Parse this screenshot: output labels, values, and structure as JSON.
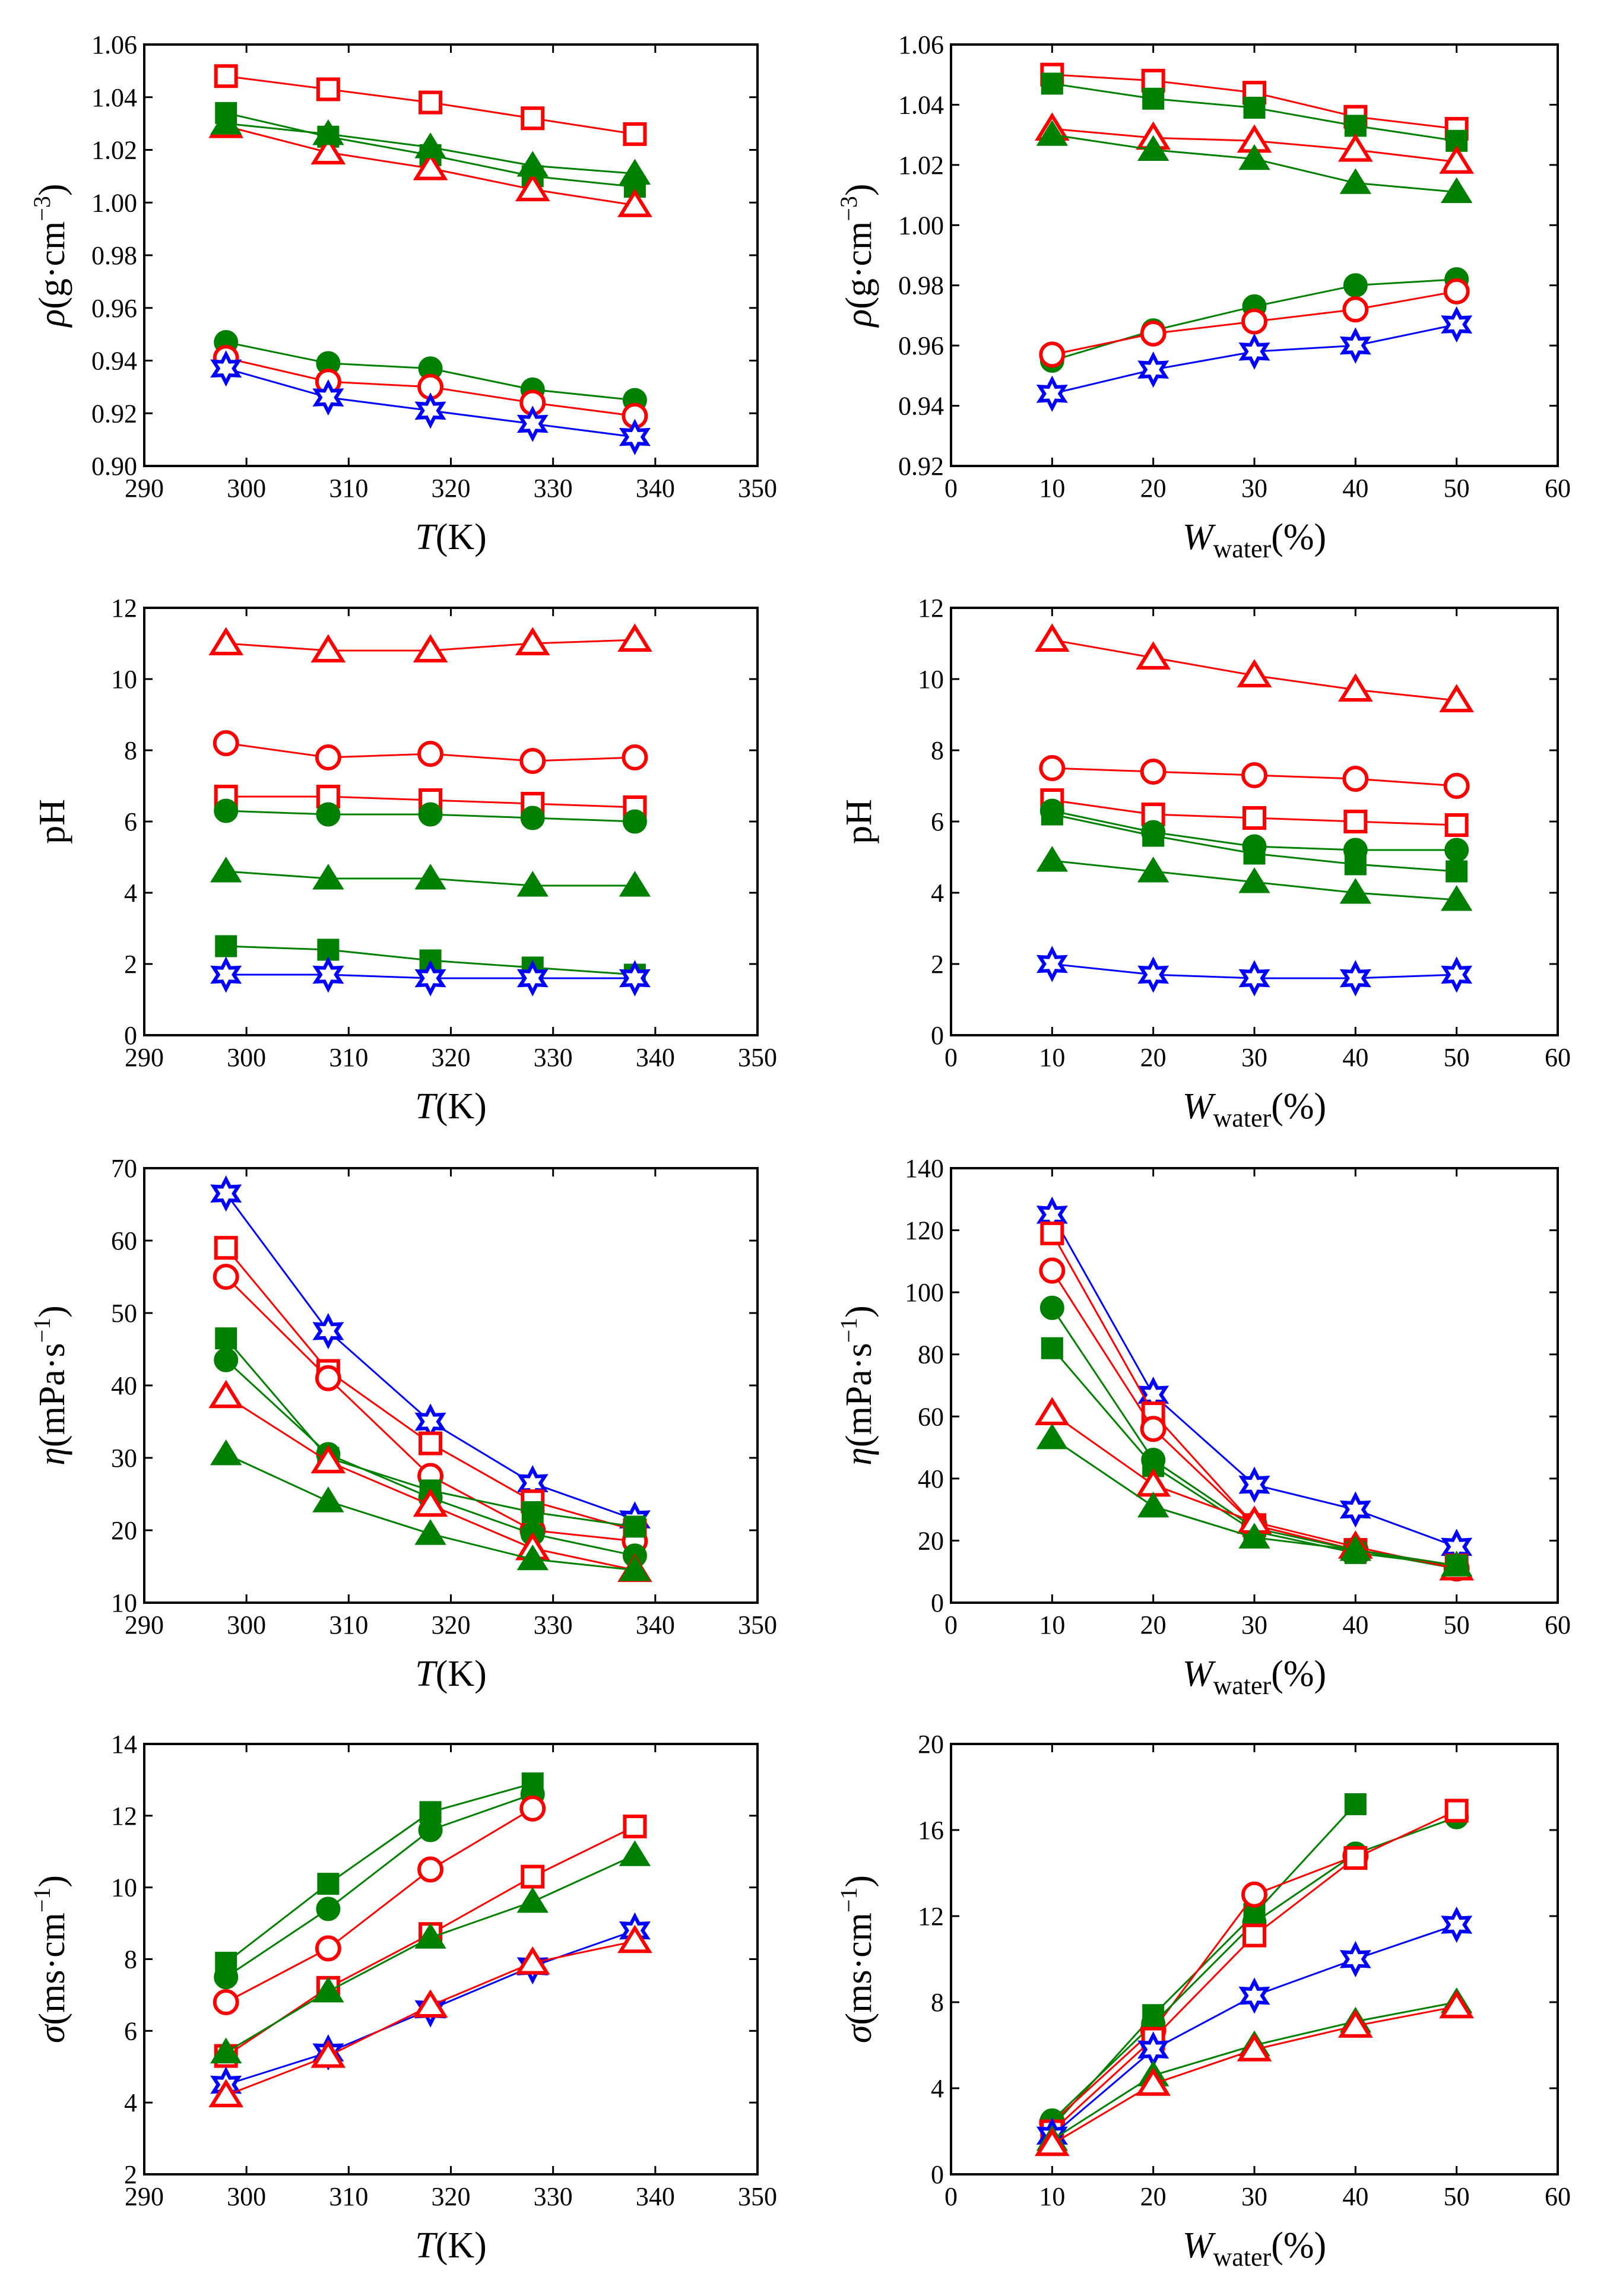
{
  "colors": {
    "red": "#ff0000",
    "green": "#008000",
    "blue": "#0000ff"
  },
  "chart_data": [
    {
      "type": "line",
      "panel": "density-vs-temperature",
      "x": [
        298,
        308,
        318,
        328,
        338
      ],
      "xlim": [
        290,
        350
      ],
      "xticks": [
        290,
        300,
        310,
        320,
        330,
        340,
        350
      ],
      "xtick_decimals": 0,
      "ylim": [
        0.9,
        1.06
      ],
      "yticks": [
        0.9,
        0.92,
        0.94,
        0.96,
        0.98,
        1.0,
        1.02,
        1.04,
        1.06
      ],
      "ytick_decimals": 2,
      "xlabel": {
        "main": "T",
        "italic": true,
        "tail": "(K)",
        "sub": ""
      },
      "ylabel": {
        "main": "ρ",
        "italic": true,
        "tail": "(g·cm",
        "sup": "−3",
        "close": ")"
      },
      "series": [
        {
          "marker": "open-square",
          "color": "red",
          "values": [
            1.048,
            1.043,
            1.038,
            1.032,
            1.026
          ]
        },
        {
          "marker": "filled-square",
          "color": "green",
          "values": [
            1.034,
            1.025,
            1.018,
            1.01,
            1.006
          ]
        },
        {
          "marker": "open-triangle",
          "color": "red",
          "values": [
            1.029,
            1.019,
            1.013,
            1.005,
            0.999
          ]
        },
        {
          "marker": "filled-triangle",
          "color": "green",
          "values": [
            1.03,
            1.026,
            1.021,
            1.014,
            1.011
          ]
        },
        {
          "marker": "filled-circle",
          "color": "green",
          "values": [
            0.947,
            0.939,
            0.937,
            0.929,
            0.925
          ]
        },
        {
          "marker": "open-circle",
          "color": "red",
          "values": [
            0.941,
            0.932,
            0.93,
            0.924,
            0.919
          ]
        },
        {
          "marker": "star",
          "color": "blue",
          "values": [
            0.937,
            0.926,
            0.921,
            0.916,
            0.911
          ]
        }
      ]
    },
    {
      "type": "line",
      "panel": "density-vs-water",
      "x": [
        10,
        20,
        30,
        40,
        50
      ],
      "xlim": [
        0,
        60
      ],
      "xticks": [
        0,
        10,
        20,
        30,
        40,
        50,
        60
      ],
      "xtick_decimals": 0,
      "ylim": [
        0.92,
        1.06
      ],
      "yticks": [
        0.92,
        0.94,
        0.96,
        0.98,
        1.0,
        1.02,
        1.04,
        1.06
      ],
      "ytick_decimals": 2,
      "xlabel": {
        "main": "W",
        "italic": true,
        "tail": "(%)",
        "sub": "water"
      },
      "ylabel": {
        "main": "ρ",
        "italic": true,
        "tail": "(g·cm",
        "sup": "−3",
        "close": ")"
      },
      "series": [
        {
          "marker": "open-square",
          "color": "red",
          "values": [
            1.05,
            1.048,
            1.044,
            1.036,
            1.032
          ]
        },
        {
          "marker": "filled-square",
          "color": "green",
          "values": [
            1.047,
            1.042,
            1.039,
            1.033,
            1.028
          ]
        },
        {
          "marker": "open-triangle",
          "color": "red",
          "values": [
            1.032,
            1.029,
            1.028,
            1.025,
            1.021
          ]
        },
        {
          "marker": "filled-triangle",
          "color": "green",
          "values": [
            1.03,
            1.025,
            1.022,
            1.014,
            1.011
          ]
        },
        {
          "marker": "filled-circle",
          "color": "green",
          "values": [
            0.955,
            0.965,
            0.973,
            0.98,
            0.982
          ]
        },
        {
          "marker": "open-circle",
          "color": "red",
          "values": [
            0.957,
            0.964,
            0.968,
            0.972,
            0.978
          ]
        },
        {
          "marker": "star",
          "color": "blue",
          "values": [
            0.944,
            0.952,
            0.958,
            0.96,
            0.967
          ]
        }
      ]
    },
    {
      "type": "line",
      "panel": "ph-vs-temperature",
      "x": [
        298,
        308,
        318,
        328,
        338
      ],
      "xlim": [
        290,
        350
      ],
      "xticks": [
        290,
        300,
        310,
        320,
        330,
        340,
        350
      ],
      "xtick_decimals": 0,
      "ylim": [
        0,
        12
      ],
      "yticks": [
        0,
        2,
        4,
        6,
        8,
        10,
        12
      ],
      "ytick_decimals": 0,
      "xlabel": {
        "main": "T",
        "italic": true,
        "tail": "(K)",
        "sub": ""
      },
      "ylabel": {
        "main": "pH",
        "italic": false,
        "tail": "",
        "sup": "",
        "close": ""
      },
      "series": [
        {
          "marker": "open-triangle",
          "color": "red",
          "values": [
            11.0,
            10.8,
            10.8,
            11.0,
            11.1
          ]
        },
        {
          "marker": "open-circle",
          "color": "red",
          "values": [
            8.2,
            7.8,
            7.9,
            7.7,
            7.8
          ]
        },
        {
          "marker": "open-square",
          "color": "red",
          "values": [
            6.7,
            6.7,
            6.6,
            6.5,
            6.4
          ]
        },
        {
          "marker": "filled-circle",
          "color": "green",
          "values": [
            6.3,
            6.2,
            6.2,
            6.1,
            6.0
          ]
        },
        {
          "marker": "filled-triangle",
          "color": "green",
          "values": [
            4.6,
            4.4,
            4.4,
            4.2,
            4.2
          ]
        },
        {
          "marker": "filled-square",
          "color": "green",
          "values": [
            2.5,
            2.4,
            2.1,
            1.9,
            1.7
          ]
        },
        {
          "marker": "star",
          "color": "blue",
          "values": [
            1.7,
            1.7,
            1.6,
            1.6,
            1.6
          ]
        }
      ]
    },
    {
      "type": "line",
      "panel": "ph-vs-water",
      "x": [
        10,
        20,
        30,
        40,
        50
      ],
      "xlim": [
        0,
        60
      ],
      "xticks": [
        0,
        10,
        20,
        30,
        40,
        50,
        60
      ],
      "xtick_decimals": 0,
      "ylim": [
        0,
        12
      ],
      "yticks": [
        0,
        2,
        4,
        6,
        8,
        10,
        12
      ],
      "ytick_decimals": 0,
      "xlabel": {
        "main": "W",
        "italic": true,
        "tail": "(%)",
        "sub": "water"
      },
      "ylabel": {
        "main": "pH",
        "italic": false,
        "tail": "",
        "sup": "",
        "close": ""
      },
      "series": [
        {
          "marker": "open-triangle",
          "color": "red",
          "values": [
            11.1,
            10.6,
            10.1,
            9.7,
            9.4
          ]
        },
        {
          "marker": "open-circle",
          "color": "red",
          "values": [
            7.5,
            7.4,
            7.3,
            7.2,
            7.0
          ]
        },
        {
          "marker": "open-square",
          "color": "red",
          "values": [
            6.6,
            6.2,
            6.1,
            6.0,
            5.9
          ]
        },
        {
          "marker": "filled-circle",
          "color": "green",
          "values": [
            6.3,
            5.7,
            5.3,
            5.2,
            5.2
          ]
        },
        {
          "marker": "filled-square",
          "color": "green",
          "values": [
            6.2,
            5.6,
            5.1,
            4.8,
            4.6
          ]
        },
        {
          "marker": "filled-triangle",
          "color": "green",
          "values": [
            4.9,
            4.6,
            4.3,
            4.0,
            3.8
          ]
        },
        {
          "marker": "star",
          "color": "blue",
          "values": [
            2.0,
            1.7,
            1.6,
            1.6,
            1.7
          ]
        }
      ]
    },
    {
      "type": "line",
      "panel": "viscosity-vs-temperature",
      "x": [
        298,
        308,
        318,
        328,
        338
      ],
      "xlim": [
        290,
        350
      ],
      "xticks": [
        290,
        300,
        310,
        320,
        330,
        340,
        350
      ],
      "xtick_decimals": 0,
      "ylim": [
        10,
        70
      ],
      "yticks": [
        10,
        20,
        30,
        40,
        50,
        60,
        70
      ],
      "ytick_decimals": 0,
      "xlabel": {
        "main": "T",
        "italic": true,
        "tail": "(K)",
        "sub": ""
      },
      "ylabel": {
        "main": "η",
        "italic": true,
        "tail": "(mPa·s",
        "sup": "−1",
        "close": ")"
      },
      "series": [
        {
          "marker": "star",
          "color": "blue",
          "values": [
            66.5,
            47.5,
            35.0,
            26.5,
            21.5
          ]
        },
        {
          "marker": "open-square",
          "color": "red",
          "values": [
            59.0,
            42.0,
            32.0,
            24.0,
            20.0
          ]
        },
        {
          "marker": "open-circle",
          "color": "red",
          "values": [
            55.0,
            41.0,
            27.5,
            20.0,
            18.5
          ]
        },
        {
          "marker": "filled-square",
          "color": "green",
          "values": [
            46.5,
            30.0,
            25.5,
            22.5,
            20.5
          ]
        },
        {
          "marker": "filled-circle",
          "color": "green",
          "values": [
            43.5,
            30.5,
            24.5,
            19.5,
            16.5
          ]
        },
        {
          "marker": "open-triangle",
          "color": "red",
          "values": [
            38.5,
            29.5,
            23.5,
            17.5,
            14.5
          ]
        },
        {
          "marker": "filled-triangle",
          "color": "green",
          "values": [
            30.5,
            24.0,
            19.5,
            16.0,
            14.5
          ]
        }
      ]
    },
    {
      "type": "line",
      "panel": "viscosity-vs-water",
      "x": [
        10,
        20,
        30,
        40,
        50
      ],
      "xlim": [
        0,
        60
      ],
      "xticks": [
        0,
        10,
        20,
        30,
        40,
        50,
        60
      ],
      "xtick_decimals": 0,
      "ylim": [
        0,
        140
      ],
      "yticks": [
        0,
        20,
        40,
        60,
        80,
        100,
        120,
        140
      ],
      "ytick_decimals": 0,
      "xlabel": {
        "main": "W",
        "italic": true,
        "tail": "(%)",
        "sub": "water"
      },
      "ylabel": {
        "main": "η",
        "italic": true,
        "tail": "(mPa·s",
        "sup": "−1",
        "close": ")"
      },
      "series": [
        {
          "marker": "star",
          "color": "blue",
          "values": [
            125,
            67,
            38,
            30,
            18
          ]
        },
        {
          "marker": "open-square",
          "color": "red",
          "values": [
            119,
            61,
            25,
            17,
            12
          ]
        },
        {
          "marker": "open-circle",
          "color": "red",
          "values": [
            107,
            56,
            25,
            17,
            11
          ]
        },
        {
          "marker": "filled-circle",
          "color": "green",
          "values": [
            95,
            46,
            24,
            17,
            11
          ]
        },
        {
          "marker": "filled-square",
          "color": "green",
          "values": [
            82,
            44,
            23,
            16,
            12
          ]
        },
        {
          "marker": "open-triangle",
          "color": "red",
          "values": [
            61,
            38,
            26,
            18,
            11
          ]
        },
        {
          "marker": "filled-triangle",
          "color": "green",
          "values": [
            53,
            31,
            21,
            17,
            12
          ]
        }
      ]
    },
    {
      "type": "line",
      "panel": "conductivity-vs-temperature",
      "x": [
        298,
        308,
        318,
        328,
        338
      ],
      "xlim": [
        290,
        350
      ],
      "xticks": [
        290,
        300,
        310,
        320,
        330,
        340,
        350
      ],
      "xtick_decimals": 0,
      "ylim": [
        2,
        14
      ],
      "yticks": [
        2,
        4,
        6,
        8,
        10,
        12,
        14
      ],
      "ytick_decimals": 0,
      "xlabel": {
        "main": "T",
        "italic": true,
        "tail": "(K)",
        "sub": ""
      },
      "ylabel": {
        "main": "σ",
        "italic": true,
        "tail": "(ms·cm",
        "sup": "−1",
        "close": ")"
      },
      "series": [
        {
          "marker": "filled-square",
          "color": "green",
          "values": [
            7.9,
            10.1,
            12.1,
            12.9,
            null
          ]
        },
        {
          "marker": "filled-circle",
          "color": "green",
          "values": [
            7.5,
            9.4,
            11.6,
            12.6,
            null
          ]
        },
        {
          "marker": "open-circle",
          "color": "red",
          "values": [
            6.8,
            8.3,
            10.5,
            12.2,
            null
          ]
        },
        {
          "marker": "open-square",
          "color": "red",
          "values": [
            5.3,
            7.2,
            8.7,
            10.3,
            11.7
          ]
        },
        {
          "marker": "filled-triangle",
          "color": "green",
          "values": [
            5.4,
            7.1,
            8.6,
            9.6,
            10.9
          ]
        },
        {
          "marker": "star",
          "color": "blue",
          "values": [
            4.5,
            5.4,
            6.6,
            7.8,
            8.8
          ]
        },
        {
          "marker": "open-triangle",
          "color": "red",
          "values": [
            4.2,
            5.3,
            6.7,
            7.9,
            8.5
          ]
        }
      ]
    },
    {
      "type": "line",
      "panel": "conductivity-vs-water",
      "x": [
        10,
        20,
        30,
        40,
        50
      ],
      "xlim": [
        0,
        60
      ],
      "xticks": [
        0,
        10,
        20,
        30,
        40,
        50,
        60
      ],
      "xtick_decimals": 0,
      "ylim": [
        0,
        20
      ],
      "yticks": [
        0,
        4,
        8,
        12,
        16,
        20
      ],
      "ytick_decimals": 0,
      "xlabel": {
        "main": "W",
        "italic": true,
        "tail": "(%)",
        "sub": "water"
      },
      "ylabel": {
        "main": "σ",
        "italic": true,
        "tail": "(ms·cm",
        "sup": "−1",
        "close": ")"
      },
      "series": [
        {
          "marker": "filled-square",
          "color": "green",
          "values": [
            2.2,
            7.4,
            12.1,
            17.2,
            null
          ]
        },
        {
          "marker": "open-circle",
          "color": "red",
          "values": [
            2.4,
            6.7,
            13.0,
            14.8,
            null
          ]
        },
        {
          "marker": "filled-circle",
          "color": "green",
          "values": [
            2.5,
            7.0,
            11.7,
            14.9,
            16.6
          ]
        },
        {
          "marker": "open-square",
          "color": "red",
          "values": [
            2.0,
            6.3,
            11.1,
            14.7,
            16.9
          ]
        },
        {
          "marker": "star",
          "color": "blue",
          "values": [
            1.8,
            5.8,
            8.3,
            10.0,
            11.6
          ]
        },
        {
          "marker": "filled-triangle",
          "color": "green",
          "values": [
            1.6,
            4.6,
            6.0,
            7.1,
            8.0
          ]
        },
        {
          "marker": "open-triangle",
          "color": "red",
          "values": [
            1.4,
            4.2,
            5.8,
            6.9,
            7.8
          ]
        }
      ]
    }
  ]
}
